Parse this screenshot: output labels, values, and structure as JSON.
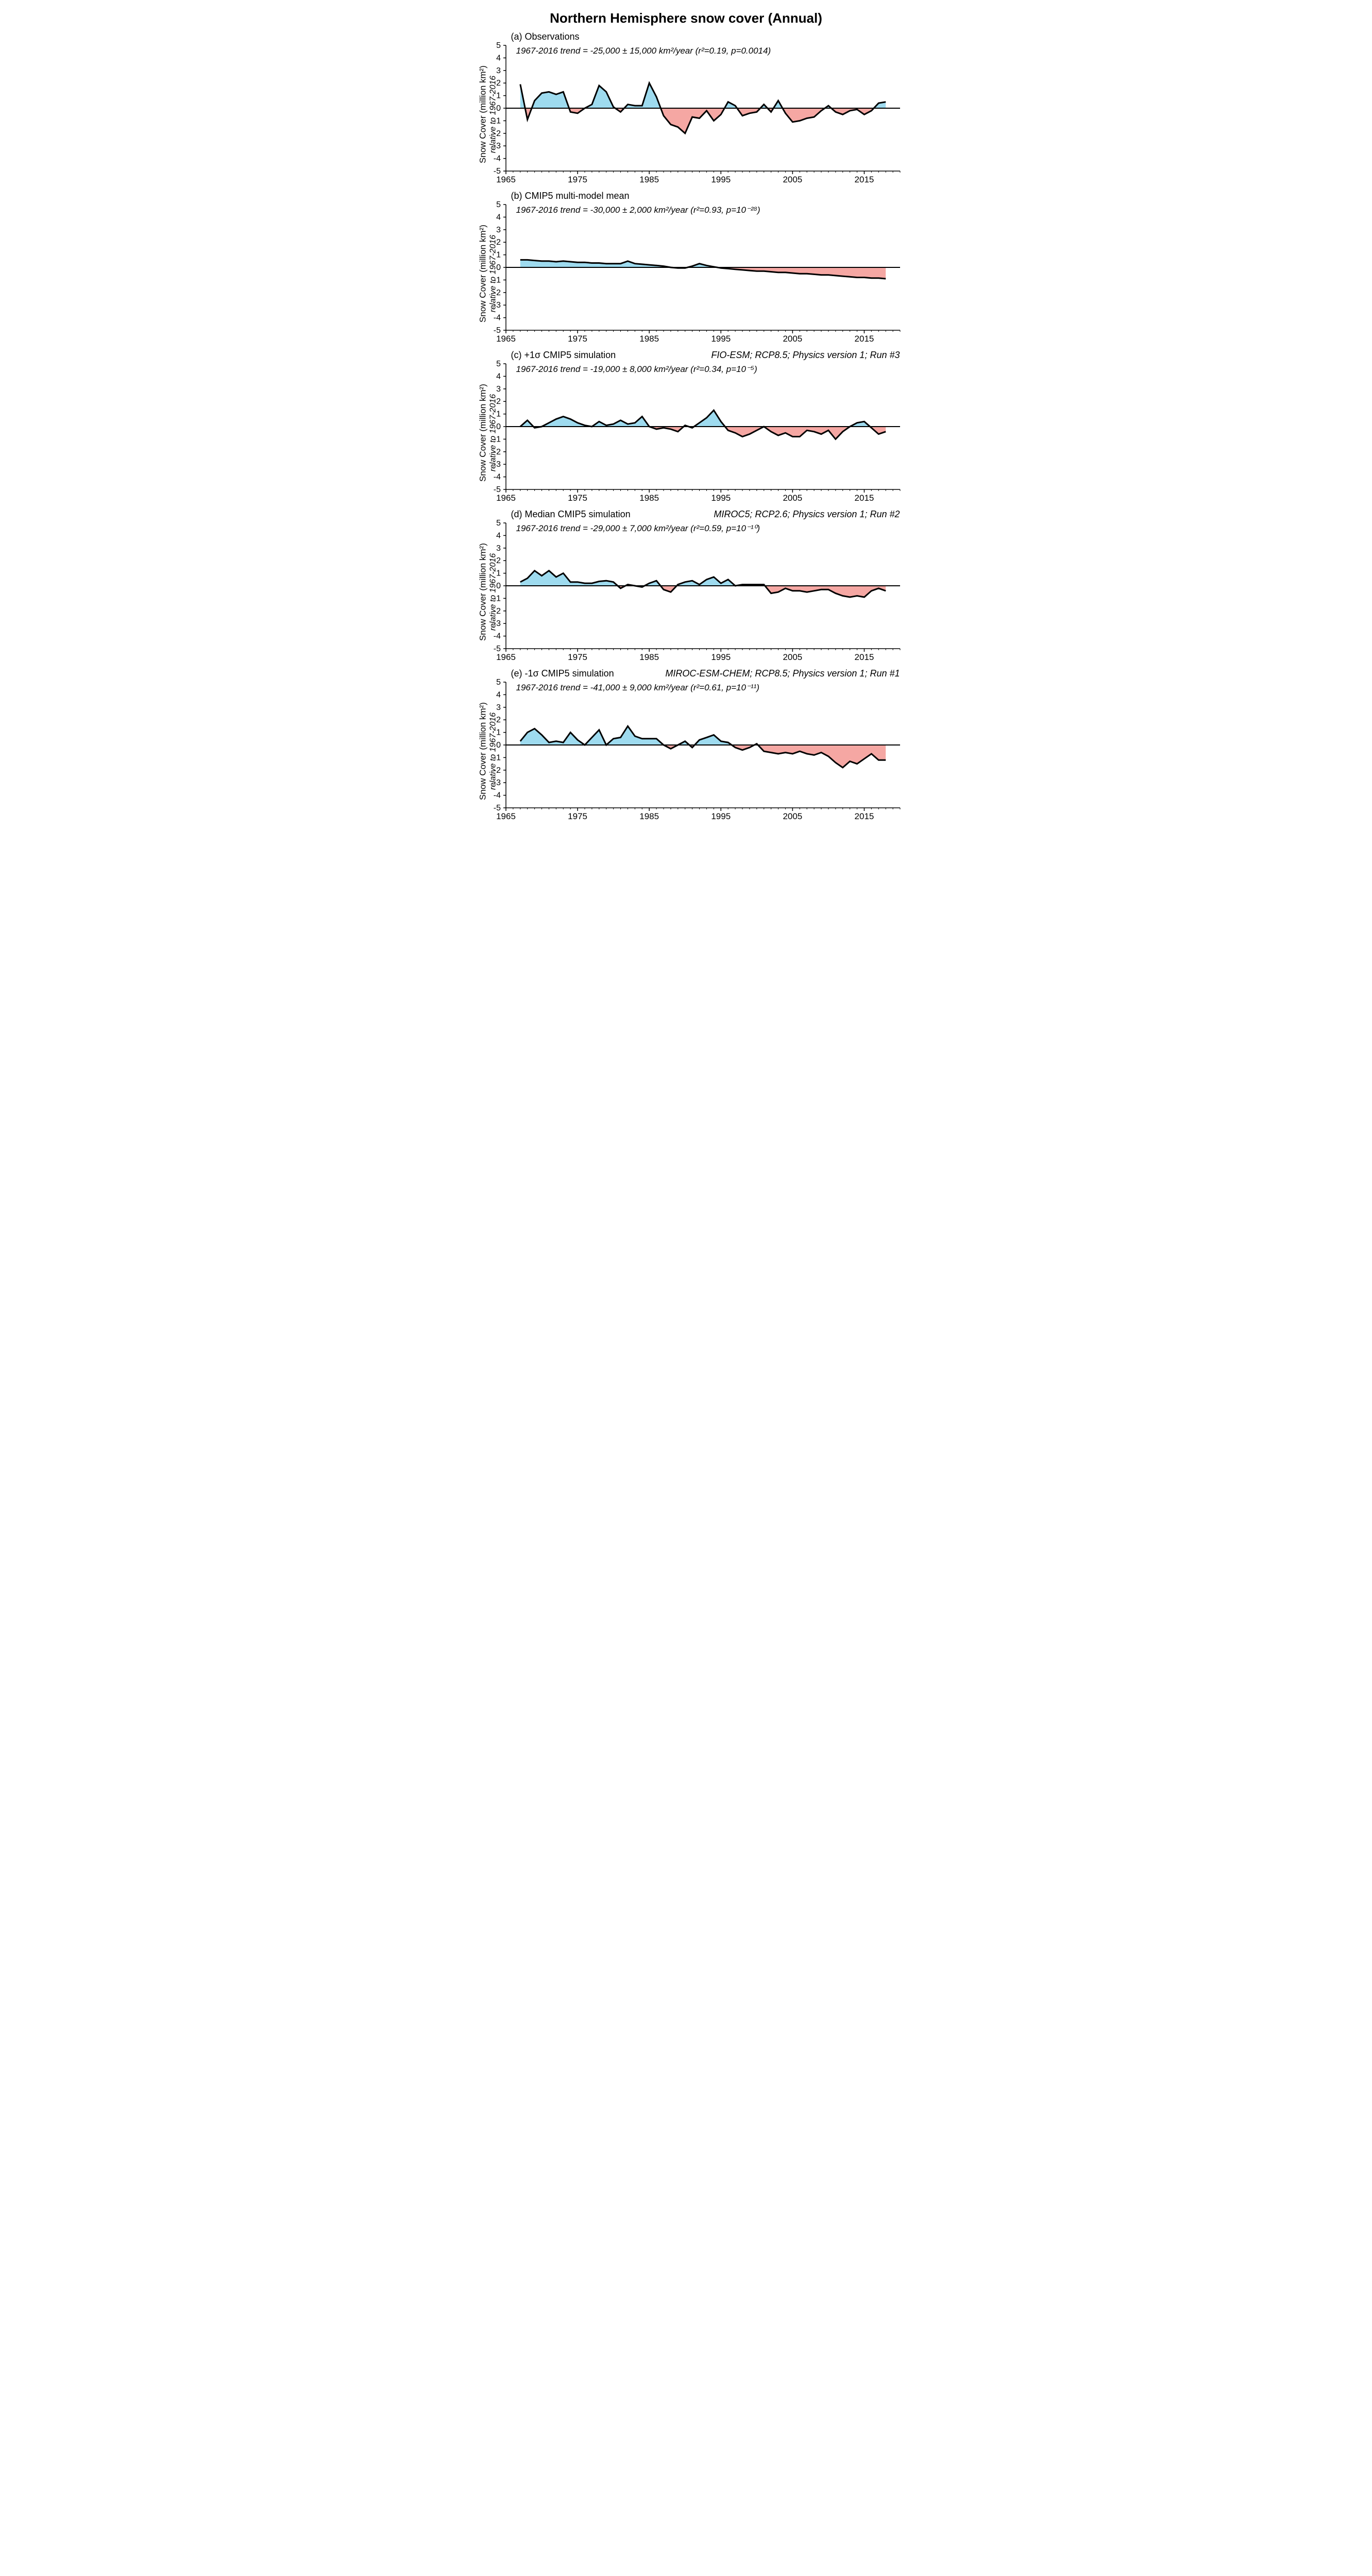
{
  "title": "Northern Hemisphere snow cover (Annual)",
  "style": {
    "positive_fill": "#9edbef",
    "negative_fill": "#f5a7a3",
    "line_color": "#000000",
    "line_width": 3,
    "background": "#ffffff",
    "tick_color": "#000000",
    "font_family": "Arial",
    "title_fontsize": 26,
    "panel_label_fontsize": 18,
    "trend_fontsize": 17,
    "axis_label_fontsize": 17
  },
  "x_axis": {
    "min": 1965,
    "max": 2020,
    "ticks": [
      1965,
      1975,
      1985,
      1995,
      2005,
      2015
    ],
    "tick_labels": [
      "1965",
      "1975",
      "1985",
      "1995",
      "2005",
      "2015"
    ]
  },
  "y_axis": {
    "min": -5,
    "max": 5,
    "ticks": [
      -5,
      -4,
      -3,
      -2,
      -1,
      0,
      1,
      2,
      3,
      4,
      5
    ],
    "label_line1": "Snow Cover (million km²)",
    "label_line2": "relative to 1967-2016"
  },
  "years": [
    1967,
    1968,
    1969,
    1970,
    1971,
    1972,
    1973,
    1974,
    1975,
    1976,
    1977,
    1978,
    1979,
    1980,
    1981,
    1982,
    1983,
    1984,
    1985,
    1986,
    1987,
    1988,
    1989,
    1990,
    1991,
    1992,
    1993,
    1994,
    1995,
    1996,
    1997,
    1998,
    1999,
    2000,
    2001,
    2002,
    2003,
    2004,
    2005,
    2006,
    2007,
    2008,
    2009,
    2010,
    2011,
    2012,
    2013,
    2014,
    2015,
    2016,
    2017,
    2018
  ],
  "panels": [
    {
      "id": "a",
      "label": "(a) Observations",
      "right_label": "",
      "trend_html": "1967-2016 trend = -25,000 ± 15,000 km²/year (r²=0.19, p=0.0014)",
      "values": [
        1.9,
        -0.9,
        0.6,
        1.2,
        1.3,
        1.1,
        1.3,
        -0.3,
        -0.4,
        0.0,
        0.3,
        1.8,
        1.3,
        0.1,
        -0.3,
        0.3,
        0.2,
        0.2,
        2.0,
        0.9,
        -0.6,
        -1.3,
        -1.5,
        -2.0,
        -0.7,
        -0.8,
        -0.2,
        -1.0,
        -0.5,
        0.5,
        0.2,
        -0.6,
        -0.4,
        -0.3,
        0.3,
        -0.3,
        0.6,
        -0.4,
        -1.1,
        -1.0,
        -0.8,
        -0.7,
        -0.2,
        0.2,
        -0.3,
        -0.5,
        -0.2,
        -0.1,
        -0.5,
        -0.2,
        0.4,
        0.5
      ]
    },
    {
      "id": "b",
      "label": "(b) CMIP5 multi-model mean",
      "right_label": "",
      "trend_html": "1967-2016 trend = -30,000 ± 2,000 km²/year (r²=0.93, p=10⁻²⁸)",
      "values": [
        0.6,
        0.6,
        0.55,
        0.5,
        0.5,
        0.45,
        0.5,
        0.45,
        0.4,
        0.4,
        0.35,
        0.35,
        0.3,
        0.3,
        0.3,
        0.5,
        0.3,
        0.25,
        0.2,
        0.15,
        0.1,
        0.0,
        -0.05,
        -0.05,
        0.1,
        0.3,
        0.15,
        0.05,
        -0.05,
        -0.1,
        -0.15,
        -0.2,
        -0.25,
        -0.3,
        -0.3,
        -0.35,
        -0.4,
        -0.4,
        -0.45,
        -0.5,
        -0.5,
        -0.55,
        -0.6,
        -0.6,
        -0.65,
        -0.7,
        -0.75,
        -0.8,
        -0.8,
        -0.85,
        -0.85,
        -0.9
      ]
    },
    {
      "id": "c",
      "label": "(c) +1σ CMIP5 simulation",
      "right_label": "FIO-ESM; RCP8.5; Physics version 1; Run #3",
      "trend_html": "1967-2016 trend = -19,000 ± 8,000 km²/year (r²=0.34, p=10⁻⁵)",
      "values": [
        0.0,
        0.5,
        -0.1,
        0.0,
        0.3,
        0.6,
        0.8,
        0.6,
        0.3,
        0.1,
        0.0,
        0.4,
        0.1,
        0.2,
        0.5,
        0.2,
        0.3,
        0.8,
        0.0,
        -0.2,
        -0.1,
        -0.2,
        -0.4,
        0.1,
        -0.1,
        0.3,
        0.7,
        1.3,
        0.4,
        -0.3,
        -0.5,
        -0.8,
        -0.6,
        -0.3,
        0.0,
        -0.4,
        -0.7,
        -0.5,
        -0.8,
        -0.8,
        -0.3,
        -0.4,
        -0.6,
        -0.3,
        -1.0,
        -0.4,
        0.0,
        0.3,
        0.4,
        -0.1,
        -0.6,
        -0.4
      ]
    },
    {
      "id": "d",
      "label": "(d) Median CMIP5 simulation",
      "right_label": "MIROC5; RCP2.6; Physics version 1; Run #2",
      "trend_html": "1967-2016 trend = -29,000 ± 7,000 km²/year (r²=0.59, p=10⁻¹⁰)",
      "values": [
        0.3,
        0.6,
        1.2,
        0.8,
        1.2,
        0.7,
        1.0,
        0.3,
        0.3,
        0.2,
        0.2,
        0.35,
        0.4,
        0.3,
        -0.2,
        0.1,
        0.0,
        -0.1,
        0.2,
        0.4,
        -0.3,
        -0.5,
        0.1,
        0.3,
        0.4,
        0.1,
        0.5,
        0.7,
        0.2,
        0.5,
        0.0,
        0.1,
        0.1,
        0.1,
        0.1,
        -0.6,
        -0.5,
        -0.2,
        -0.4,
        -0.4,
        -0.5,
        -0.4,
        -0.3,
        -0.3,
        -0.6,
        -0.8,
        -0.9,
        -0.8,
        -0.9,
        -0.4,
        -0.2,
        -0.4
      ]
    },
    {
      "id": "e",
      "label": "(e) -1σ CMIP5 simulation",
      "right_label": "MIROC-ESM-CHEM; RCP8.5; Physics version 1; Run #1",
      "trend_html": "1967-2016 trend = -41,000 ± 9,000 km²/year (r²=0.61, p=10⁻¹¹)",
      "values": [
        0.3,
        1.0,
        1.3,
        0.8,
        0.2,
        0.3,
        0.2,
        1.0,
        0.4,
        0.0,
        0.6,
        1.2,
        0.0,
        0.5,
        0.6,
        1.5,
        0.7,
        0.5,
        0.5,
        0.5,
        0.0,
        -0.3,
        0.0,
        0.3,
        -0.2,
        0.4,
        0.6,
        0.8,
        0.3,
        0.2,
        -0.2,
        -0.4,
        -0.2,
        0.1,
        -0.5,
        -0.6,
        -0.7,
        -0.6,
        -0.7,
        -0.5,
        -0.7,
        -0.8,
        -0.6,
        -0.9,
        -1.4,
        -1.8,
        -1.3,
        -1.5,
        -1.1,
        -0.7,
        -1.2,
        -1.2
      ]
    }
  ]
}
